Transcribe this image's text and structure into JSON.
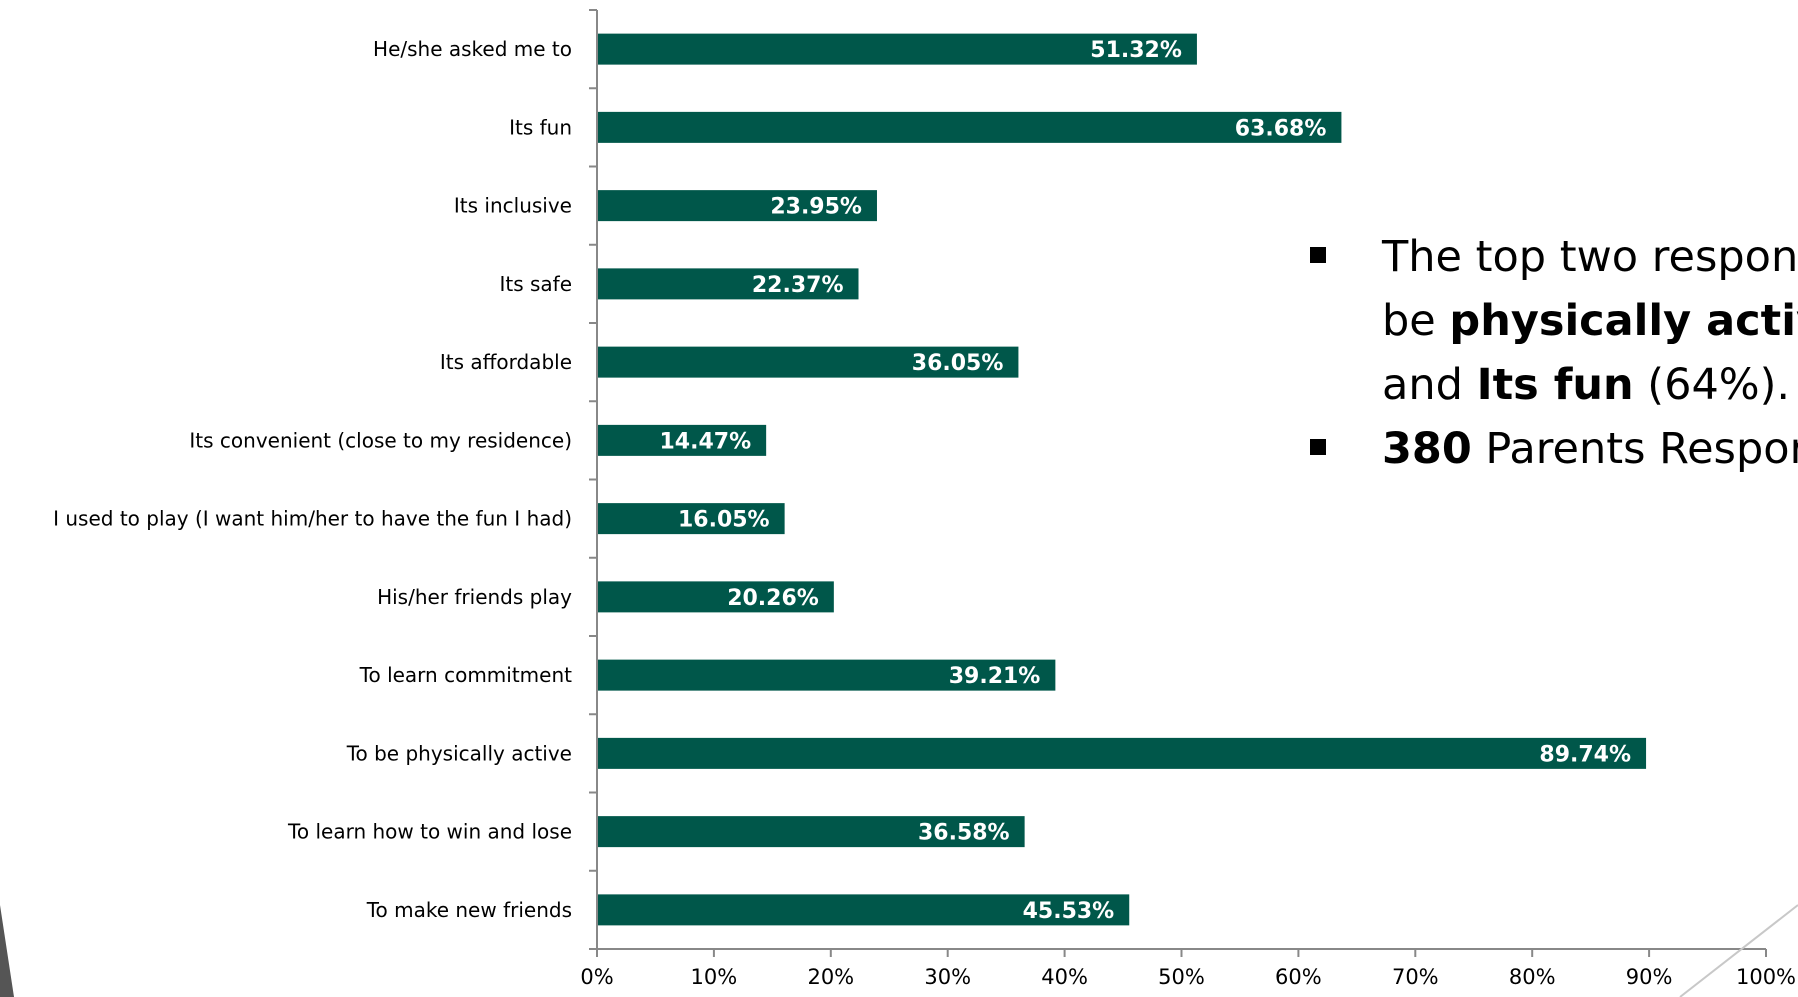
{
  "chart_data": {
    "type": "bar",
    "orientation": "horizontal",
    "categories": [
      "He/she asked me to",
      "Its fun",
      "Its inclusive",
      "Its safe",
      "Its affordable",
      "Its convenient (close to my residence)",
      "I used to play (I want him/her to have the fun I had)",
      "His/her friends play",
      "To learn commitment",
      "To be physically active",
      "To learn how to win and lose",
      "To make new friends"
    ],
    "values": [
      51.32,
      63.68,
      23.95,
      22.37,
      36.05,
      14.47,
      16.05,
      20.26,
      39.21,
      89.74,
      36.58,
      45.53
    ],
    "data_labels": [
      "51.32%",
      "63.68%",
      "23.95%",
      "22.37%",
      "36.05%",
      "14.47%",
      "16.05%",
      "20.26%",
      "39.21%",
      "89.74%",
      "36.58%",
      "45.53%"
    ],
    "xlim": [
      0,
      100
    ],
    "xticks": [
      "0%",
      "10%",
      "20%",
      "30%",
      "40%",
      "50%",
      "60%",
      "70%",
      "80%",
      "90%",
      "100%"
    ],
    "bar_color": "#00574a",
    "grid": false,
    "title": "",
    "xlabel": "",
    "ylabel": ""
  },
  "callout": {
    "bullet1_pre": "The top two respon",
    "bullet1_line2_pre": "be ",
    "bullet1_bold1": "physically active",
    "bullet1_line3_pre": "and ",
    "bullet1_bold2": "Its fun",
    "bullet1_post": " (64%).",
    "bullet2_bold": "380",
    "bullet2_post": " Parents Respor"
  }
}
